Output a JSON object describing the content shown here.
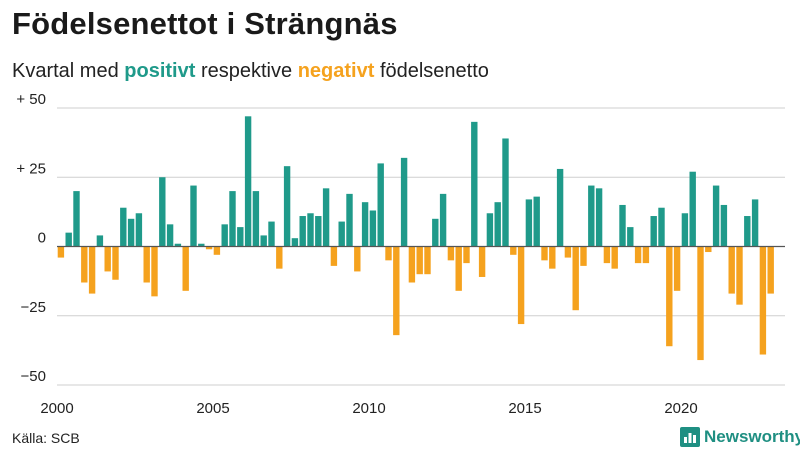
{
  "title": "Födelsenettot i Strängnäs",
  "subtitle": {
    "prefix": "Kvartal med",
    "positive_word": "positivt",
    "middle": "respektive",
    "negative_word": "negativt",
    "suffix": "födelsenetto"
  },
  "source": "Källa: SCB",
  "brand": "Newsworthy",
  "colors": {
    "positive": "#1f9a8a",
    "negative": "#f5a21e",
    "brand": "#1f8f82",
    "grid": "#cfcfcf",
    "zero": "#555555"
  },
  "chart_data": {
    "type": "bar",
    "title": "Födelsenettot i Strängnäs",
    "xlabel": "",
    "ylabel": "",
    "ylim": [
      -50,
      50
    ],
    "yticks": [
      {
        "value": 50,
        "label": "+ 50"
      },
      {
        "value": 25,
        "label": "+ 25"
      },
      {
        "value": 0,
        "label": "0"
      },
      {
        "value": -25,
        "label": "−25"
      },
      {
        "value": -50,
        "label": "−50"
      }
    ],
    "xticks": [
      {
        "value": 2000,
        "label": "2000"
      },
      {
        "value": 2005,
        "label": "2005"
      },
      {
        "value": 2010,
        "label": "2010"
      },
      {
        "value": 2015,
        "label": "2015"
      },
      {
        "value": 2020,
        "label": "2020"
      }
    ],
    "start_year": 2000,
    "quarters_per_year": 4,
    "values": [
      -4,
      5,
      20,
      -13,
      -17,
      4,
      -9,
      -12,
      14,
      10,
      12,
      -13,
      -18,
      25,
      8,
      1,
      -16,
      22,
      1,
      -1,
      -3,
      8,
      20,
      7,
      47,
      20,
      4,
      9,
      -8,
      29,
      3,
      11,
      12,
      11,
      21,
      -7,
      9,
      19,
      -9,
      16,
      13,
      30,
      -5,
      -32,
      32,
      -13,
      -10,
      -10,
      10,
      19,
      -5,
      -16,
      -6,
      45,
      -11,
      12,
      16,
      39,
      -3,
      -28,
      17,
      18,
      -5,
      -8,
      28,
      -4,
      -23,
      -7,
      22,
      21,
      -6,
      -8,
      15,
      7,
      -6,
      -6,
      11,
      14,
      -36,
      -16,
      12,
      27,
      -41,
      -2,
      22,
      15,
      -17,
      -21,
      11,
      17,
      -39,
      -17
    ]
  }
}
